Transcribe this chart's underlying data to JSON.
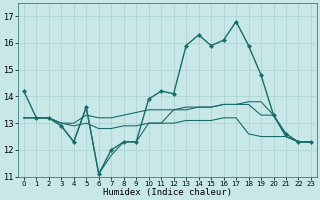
{
  "xlabel": "Humidex (Indice chaleur)",
  "background_color": "#c8e8e8",
  "line_color": "#1a6b6b",
  "grid_color": "#aad0d0",
  "xlim": [
    -0.5,
    23.5
  ],
  "ylim": [
    11,
    17.5
  ],
  "xticks": [
    0,
    1,
    2,
    3,
    4,
    5,
    6,
    7,
    8,
    9,
    10,
    11,
    12,
    13,
    14,
    15,
    16,
    17,
    18,
    19,
    20,
    21,
    22,
    23
  ],
  "yticks": [
    11,
    12,
    13,
    14,
    15,
    16,
    17
  ],
  "lines": [
    {
      "x": [
        0,
        1,
        2,
        3,
        4,
        5,
        6,
        7,
        8,
        9,
        10,
        11,
        12,
        13,
        14,
        15,
        16,
        17,
        18,
        19,
        20,
        21,
        22,
        23
      ],
      "y": [
        14.2,
        13.2,
        13.2,
        12.9,
        12.3,
        13.6,
        11.1,
        12.0,
        12.3,
        12.3,
        13.9,
        14.2,
        14.1,
        15.9,
        16.3,
        15.9,
        16.1,
        16.8,
        15.9,
        14.8,
        13.3,
        12.6,
        12.3,
        12.3
      ],
      "marker": "D",
      "markersize": 2.0,
      "linewidth": 1.0
    },
    {
      "x": [
        0,
        1,
        2,
        3,
        4,
        5,
        6,
        7,
        8,
        9,
        10,
        11,
        12,
        13,
        14,
        15,
        16,
        17,
        18,
        19,
        20,
        21,
        22,
        23
      ],
      "y": [
        13.2,
        13.2,
        13.2,
        13.0,
        13.0,
        13.3,
        13.2,
        13.2,
        13.3,
        13.4,
        13.5,
        13.5,
        13.5,
        13.6,
        13.6,
        13.6,
        13.7,
        13.7,
        13.7,
        13.3,
        13.3,
        12.5,
        12.3,
        12.3
      ],
      "marker": null,
      "markersize": 0,
      "linewidth": 0.8
    },
    {
      "x": [
        0,
        1,
        2,
        3,
        4,
        5,
        6,
        7,
        8,
        9,
        10,
        11,
        12,
        13,
        14,
        15,
        16,
        17,
        18,
        19,
        20,
        21,
        22,
        23
      ],
      "y": [
        13.2,
        13.2,
        13.2,
        13.0,
        12.9,
        13.0,
        12.8,
        12.8,
        12.9,
        12.9,
        13.0,
        13.0,
        13.0,
        13.1,
        13.1,
        13.1,
        13.2,
        13.2,
        12.6,
        12.5,
        12.5,
        12.5,
        12.3,
        12.3
      ],
      "marker": null,
      "markersize": 0,
      "linewidth": 0.8
    },
    {
      "x": [
        0,
        1,
        2,
        3,
        4,
        5,
        6,
        7,
        8,
        9,
        10,
        11,
        12,
        13,
        14,
        15,
        16,
        17,
        18,
        19,
        20,
        21,
        22,
        23
      ],
      "y": [
        13.2,
        13.2,
        13.2,
        12.9,
        12.3,
        13.6,
        11.1,
        11.8,
        12.3,
        12.3,
        13.0,
        13.0,
        13.5,
        13.5,
        13.6,
        13.6,
        13.7,
        13.7,
        13.8,
        13.8,
        13.3,
        12.5,
        12.3,
        12.3
      ],
      "marker": null,
      "markersize": 0,
      "linewidth": 0.8
    }
  ]
}
